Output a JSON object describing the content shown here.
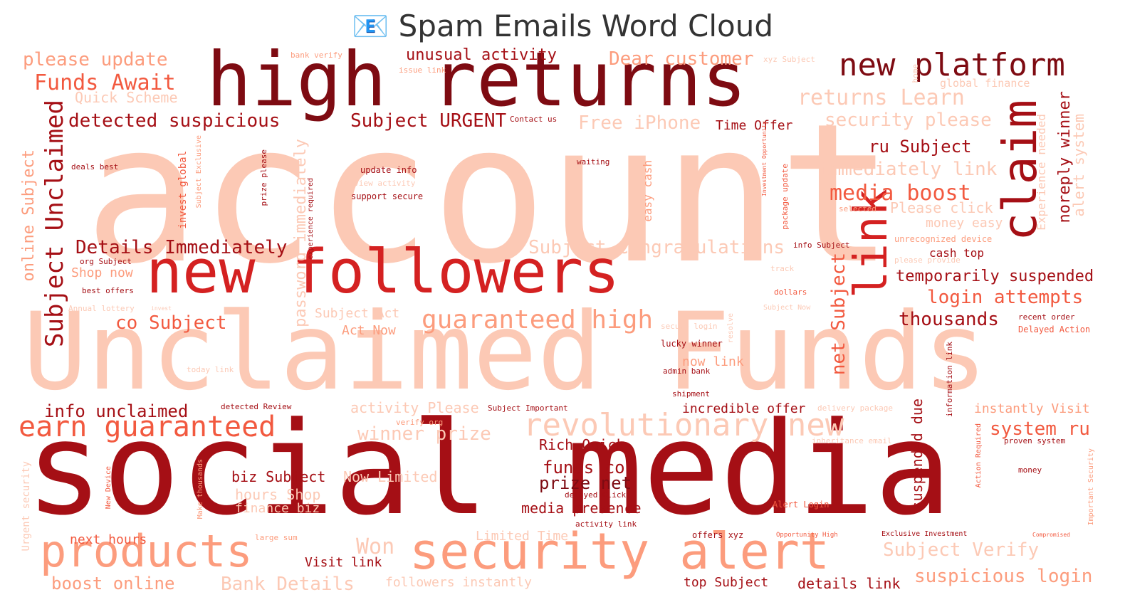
{
  "title": "📧 Spam Emails Word Cloud",
  "colors": {
    "pale": "#fcc9b5",
    "light": "#fc9c7d",
    "mid": "#f2593f",
    "strong": "#d42121",
    "dark": "#a50f15",
    "deep": "#7e0b12"
  },
  "words": [
    {
      "text": "account",
      "c": "pale"
    },
    {
      "text": "Unclaimed Funds",
      "c": "pale"
    },
    {
      "text": "social media",
      "c": "dark"
    },
    {
      "text": "high returns",
      "c": "deep"
    },
    {
      "text": "new followers",
      "c": "strong"
    },
    {
      "text": "new platform",
      "c": "deep"
    },
    {
      "text": "claim",
      "c": "dark"
    },
    {
      "text": "link",
      "c": "strong"
    },
    {
      "text": "security alert",
      "c": "light"
    },
    {
      "text": "products",
      "c": "light"
    },
    {
      "text": "revolutionary new",
      "c": "pale"
    },
    {
      "text": "earn guaranteed",
      "c": "mid"
    },
    {
      "text": "guaranteed high",
      "c": "light"
    },
    {
      "text": "Subject Unclaimed",
      "c": "dark"
    },
    {
      "text": "Details Immediately",
      "c": "dark"
    },
    {
      "text": "detected suspicious",
      "c": "dark"
    },
    {
      "text": "Funds Await",
      "c": "mid"
    },
    {
      "text": "please update",
      "c": "light"
    },
    {
      "text": "Quick Scheme",
      "c": "pale"
    },
    {
      "text": "unusual activity",
      "c": "dark"
    },
    {
      "text": "Dear customer",
      "c": "light"
    },
    {
      "text": "Subject URGENT",
      "c": "dark"
    },
    {
      "text": "Time Offer",
      "c": "dark"
    },
    {
      "text": "Free iPhone",
      "c": "pale"
    },
    {
      "text": "returns Learn",
      "c": "pale"
    },
    {
      "text": "security please",
      "c": "pale"
    },
    {
      "text": "ru Subject",
      "c": "dark"
    },
    {
      "text": "immediately link",
      "c": "pale"
    },
    {
      "text": "media boost",
      "c": "mid"
    },
    {
      "text": "Please click",
      "c": "pale"
    },
    {
      "text": "money easy",
      "c": "pale"
    },
    {
      "text": "noreply winner",
      "c": "dark"
    },
    {
      "text": "alert system",
      "c": "pale"
    },
    {
      "text": "Subject Congratulations",
      "c": "pale"
    },
    {
      "text": "temporarily suspended",
      "c": "dark"
    },
    {
      "text": "login attempts",
      "c": "mid"
    },
    {
      "text": "thousands",
      "c": "dark"
    },
    {
      "text": "net Subject",
      "c": "mid"
    },
    {
      "text": "co Subject",
      "c": "mid"
    },
    {
      "text": "online Subject",
      "c": "light"
    },
    {
      "text": "Shop now",
      "c": "light"
    },
    {
      "text": "info unclaimed",
      "c": "dark"
    },
    {
      "text": "password immediately",
      "c": "pale"
    },
    {
      "text": "Subject Act",
      "c": "pale"
    },
    {
      "text": "Act Now",
      "c": "light"
    },
    {
      "text": "now link",
      "c": "light"
    },
    {
      "text": "activity Please",
      "c": "pale"
    },
    {
      "text": "incredible offer",
      "c": "dark"
    },
    {
      "text": "instantly Visit",
      "c": "light"
    },
    {
      "text": "system ru",
      "c": "mid"
    },
    {
      "text": "winner prize",
      "c": "pale"
    },
    {
      "text": "Rich Quick",
      "c": "dark"
    },
    {
      "text": "funds co",
      "c": "dark"
    },
    {
      "text": "prize net",
      "c": "deep"
    },
    {
      "text": "media presence",
      "c": "dark"
    },
    {
      "text": "biz Subject",
      "c": "dark"
    },
    {
      "text": "Now Limited",
      "c": "pale"
    },
    {
      "text": "hours Shop",
      "c": "pale"
    },
    {
      "text": "finance biz",
      "c": "pale"
    },
    {
      "text": "next hours",
      "c": "mid"
    },
    {
      "text": "Limited Time",
      "c": "pale"
    },
    {
      "text": "Won",
      "c": "pale"
    },
    {
      "text": "Visit link",
      "c": "dark"
    },
    {
      "text": "boost online",
      "c": "light"
    },
    {
      "text": "Bank Details",
      "c": "pale"
    },
    {
      "text": "followers instantly",
      "c": "pale"
    },
    {
      "text": "top Subject",
      "c": "dark"
    },
    {
      "text": "details link",
      "c": "dark"
    },
    {
      "text": "suspicious login",
      "c": "light"
    },
    {
      "text": "Subject Verify",
      "c": "pale"
    },
    {
      "text": "suspended due",
      "c": "dark"
    },
    {
      "text": "easy cash",
      "c": "light"
    },
    {
      "text": "cash top",
      "c": "dark"
    },
    {
      "text": "bank verify",
      "c": "light"
    },
    {
      "text": "issue link",
      "c": "light"
    },
    {
      "text": "xyz Subject",
      "c": "pale"
    },
    {
      "text": "home",
      "c": "pale"
    },
    {
      "text": "global finance",
      "c": "pale"
    },
    {
      "text": "Contact us",
      "c": "dark"
    },
    {
      "text": "deals best",
      "c": "dark"
    },
    {
      "text": "invest global",
      "c": "mid"
    },
    {
      "text": "Subject Exclusive",
      "c": "light"
    },
    {
      "text": "prize please",
      "c": "dark"
    },
    {
      "text": "update info",
      "c": "dark"
    },
    {
      "text": "Review activity",
      "c": "pale"
    },
    {
      "text": "support secure",
      "c": "dark"
    },
    {
      "text": "waiting",
      "c": "dark"
    },
    {
      "text": "selected",
      "c": "light"
    },
    {
      "text": "unrecognized device",
      "c": "light"
    },
    {
      "text": "info Subject",
      "c": "dark"
    },
    {
      "text": "please provide",
      "c": "pale"
    },
    {
      "text": "track",
      "c": "pale"
    },
    {
      "text": "dollars",
      "c": "mid"
    },
    {
      "text": "Subject Now",
      "c": "pale"
    },
    {
      "text": "recent order",
      "c": "dark"
    },
    {
      "text": "Delayed Action",
      "c": "mid"
    },
    {
      "text": "secure login",
      "c": "pale"
    },
    {
      "text": "lucky winner",
      "c": "dark"
    },
    {
      "text": "admin bank",
      "c": "dark"
    },
    {
      "text": "shipment",
      "c": "dark"
    },
    {
      "text": "today link",
      "c": "pale"
    },
    {
      "text": "org Subject",
      "c": "dark"
    },
    {
      "text": "best offers",
      "c": "dark"
    },
    {
      "text": "Annual lottery",
      "c": "pale"
    },
    {
      "text": "invest",
      "c": "pale"
    },
    {
      "text": "experience required",
      "c": "dark"
    },
    {
      "text": "package update",
      "c": "mid"
    },
    {
      "text": "Investment Opportunity",
      "c": "mid"
    },
    {
      "text": "resolve",
      "c": "pale"
    },
    {
      "text": "information link",
      "c": "dark"
    },
    {
      "text": "detected Review",
      "c": "dark"
    },
    {
      "text": "verify org",
      "c": "light"
    },
    {
      "text": "Subject Important",
      "c": "dark"
    },
    {
      "text": "delivery package",
      "c": "pale"
    },
    {
      "text": "inheritance email",
      "c": "pale"
    },
    {
      "text": "proven system",
      "c": "dark"
    },
    {
      "text": "money",
      "c": "dark"
    },
    {
      "text": "delayed Click",
      "c": "dark"
    },
    {
      "text": "Alert Login",
      "c": "mid"
    },
    {
      "text": "activity link",
      "c": "dark"
    },
    {
      "text": "offers xyz",
      "c": "dark"
    },
    {
      "text": "Opportunity High",
      "c": "mid"
    },
    {
      "text": "Exclusive Investment",
      "c": "dark"
    },
    {
      "text": "Compromised",
      "c": "mid"
    },
    {
      "text": "large sum",
      "c": "light"
    },
    {
      "text": "Make thousands",
      "c": "light"
    },
    {
      "text": "New Device",
      "c": "mid"
    },
    {
      "text": "Urgent security",
      "c": "pale"
    },
    {
      "text": "Action Required",
      "c": "mid"
    },
    {
      "text": "Important Security",
      "c": "light"
    },
    {
      "text": "Experience needed",
      "c": "pale"
    }
  ]
}
